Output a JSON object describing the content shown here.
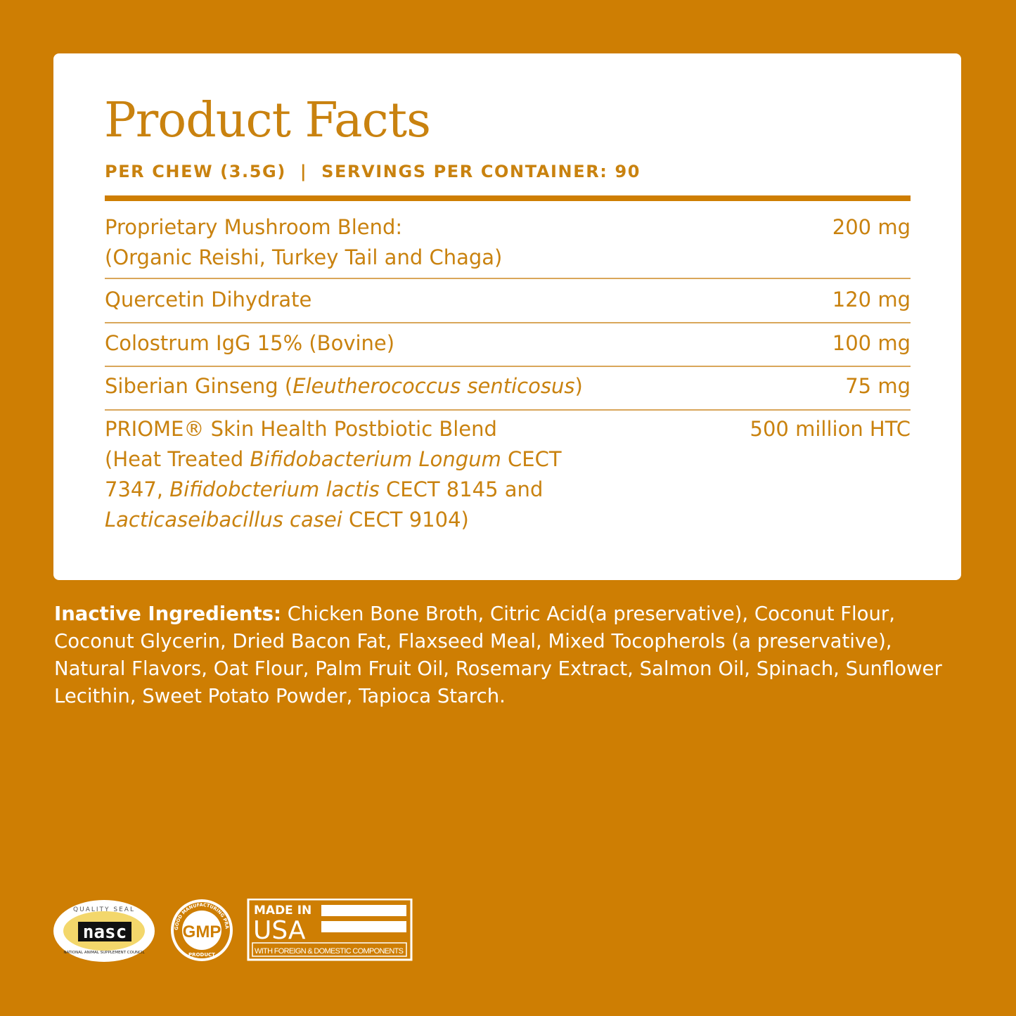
{
  "facts": {
    "title": "Product Facts",
    "serving": "PER CHEW (3.5G)",
    "separator": "|",
    "servings_per_container": "SERVINGS PER CONTAINER: 90",
    "rows": [
      {
        "line1": "Proprietary Mushroom Blend:",
        "line2": "(Organic Reishi, Turkey Tail and Chaga)",
        "amount": "200 mg"
      },
      {
        "line1": "Quercetin Dihydrate",
        "amount": "120 mg"
      },
      {
        "line1": "Colostrum IgG 15% (Bovine)",
        "amount": "100 mg"
      },
      {
        "line1a": "Siberian Ginseng (",
        "line1i": "Eleutherococcus senticosus",
        "line1b": ")",
        "amount": "75 mg"
      },
      {
        "line1": "PRIOME® Skin Health Postbiotic Blend",
        "l2a": "(Heat Treated ",
        "l2i": "Bifidobacterium Longum",
        "l2b": " CECT",
        "l3a": "7347, ",
        "l3i": "Bifidobcterium lactis",
        "l3b": " CECT 8145 and",
        "l4i": "Lacticaseibacillus casei",
        "l4b": " CECT 9104)",
        "amount": "500 million HTC"
      }
    ]
  },
  "inactive": {
    "label": "Inactive Ingredients:",
    "text": " Chicken Bone Broth, Citric Acid(a preservative), Coconut Flour, Coconut Glycerin, Dried Bacon Fat, Flaxseed Meal, Mixed Tocopherols (a preservative), Natural Flavors, Oat Flour, Palm Fruit Oil, Rosemary Extract, Salmon Oil, Spinach, Sunflower Lecithin, Sweet Potato Powder, Tapioca Starch."
  },
  "badges": {
    "nasc": {
      "top": "QUALITY SEAL",
      "logo": "nasc",
      "bottom": "NATIONAL ANIMAL SUPPLEMENT COUNCIL"
    },
    "gmp": {
      "center": "GMP",
      "ring": "GOOD MANUFACTURING PRACTICE",
      "bottom": "PRODUCT"
    },
    "usa": {
      "line1": "MADE IN",
      "line2": "USA",
      "footer": "WITH FOREIGN & DOMESTIC COMPONENTS"
    }
  },
  "colors": {
    "background": "#CE7E03",
    "accent_text": "#C9820F",
    "card": "#FFFFFF"
  }
}
